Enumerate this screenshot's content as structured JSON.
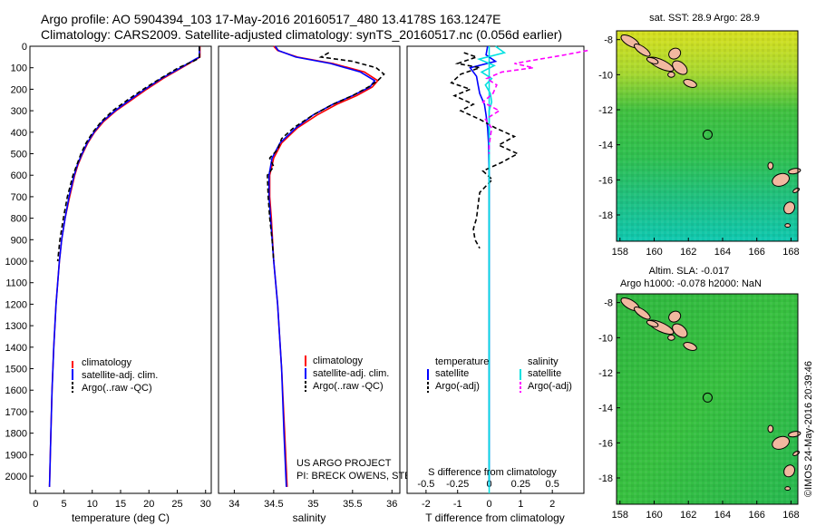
{
  "header": {
    "line1": "Argo profile: AO 5904394_103 17-May-2016 20160517_480 13.4178S 163.1247E",
    "line2": "Climatology: CARS2009. Satellite-adjusted climatology: synTS_20160517.nc (0.056d earlier)"
  },
  "credits": {
    "project": "US ARGO PROJECT",
    "pis": "PI: BRECK OWENS, STEVE JAYNE, P.E. ROBBINS",
    "timestamp": "©IMOS 24-May-2016 20:39:46"
  },
  "colors": {
    "climatology": "#ff0000",
    "satellite": "#0000ff",
    "argo": "#000000",
    "sal_satellite": "#00e0e0",
    "sal_argo": "#ff00ff",
    "land": "#f2b8a0"
  },
  "chart_data": [
    {
      "type": "line",
      "id": "temperature",
      "xlabel": "temperature (deg C)",
      "xlim": [
        -1,
        31
      ],
      "ylim": [
        2080,
        0
      ],
      "xticks": [
        0,
        5,
        10,
        15,
        20,
        25,
        30
      ],
      "yticks": [
        0,
        100,
        200,
        300,
        400,
        500,
        600,
        700,
        800,
        900,
        1000,
        1100,
        1200,
        1300,
        1400,
        1500,
        1600,
        1700,
        1800,
        1900,
        2000
      ],
      "legend": [
        "climatology",
        "satellite-adj. clim.",
        "Argo(..raw -QC)"
      ],
      "legend_position": "lower-center",
      "series": [
        {
          "name": "climatology",
          "depth": [
            0,
            50,
            60,
            100,
            150,
            200,
            250,
            300,
            350,
            400,
            450,
            500,
            550,
            600,
            700,
            800,
            900,
            1000,
            1200,
            1400,
            1600,
            1800,
            2000,
            2050
          ],
          "values": [
            29.0,
            29.0,
            28.4,
            25.8,
            22.5,
            19.6,
            16.9,
            14.2,
            12.0,
            10.4,
            9.2,
            8.3,
            7.5,
            6.9,
            6.0,
            5.2,
            4.6,
            4.2,
            3.6,
            3.2,
            2.9,
            2.7,
            2.5,
            2.45
          ]
        },
        {
          "name": "satellite-adj. clim.",
          "depth": [
            0,
            50,
            60,
            100,
            150,
            200,
            250,
            300,
            350,
            400,
            450,
            500,
            550,
            600,
            700,
            800,
            900,
            1000,
            1200,
            1400,
            1600,
            1800,
            2000,
            2050
          ],
          "values": [
            28.9,
            28.9,
            28.2,
            25.6,
            22.2,
            19.3,
            16.6,
            14.0,
            11.8,
            10.3,
            9.1,
            8.2,
            7.4,
            6.8,
            5.9,
            5.2,
            4.6,
            4.2,
            3.6,
            3.2,
            2.9,
            2.7,
            2.5,
            2.45
          ]
        },
        {
          "name": "Argo(..raw -QC)",
          "depth": [
            0,
            55,
            70,
            100,
            150,
            200,
            250,
            300,
            350,
            400,
            450,
            500,
            550,
            600,
            700,
            800,
            900,
            1000
          ],
          "values": [
            28.9,
            28.9,
            27.8,
            25.2,
            22.0,
            19.0,
            16.2,
            13.6,
            11.6,
            10.1,
            8.9,
            8.0,
            7.3,
            6.6,
            5.6,
            4.9,
            4.3,
            3.9
          ]
        }
      ]
    },
    {
      "type": "line",
      "id": "salinity",
      "xlabel": "salinity",
      "xlim": [
        33.8,
        36.1
      ],
      "ylim": [
        2080,
        0
      ],
      "xticks": [
        34,
        34.5,
        35,
        35.5,
        36
      ],
      "legend": [
        "climatology",
        "satellite-adj. clim.",
        "Argo(..raw -QC)"
      ],
      "legend_position": "lower-center",
      "series": [
        {
          "name": "climatology",
          "depth": [
            0,
            20,
            50,
            80,
            120,
            160,
            190,
            230,
            270,
            320,
            380,
            450,
            520,
            600,
            700,
            800,
            1000,
            1200,
            1500,
            1800,
            2050
          ],
          "values": [
            34.5,
            34.55,
            34.8,
            35.25,
            35.65,
            35.82,
            35.75,
            35.55,
            35.3,
            35.05,
            34.8,
            34.6,
            34.5,
            34.45,
            34.45,
            34.47,
            34.5,
            34.55,
            34.6,
            34.64,
            34.67
          ]
        },
        {
          "name": "satellite-adj. clim.",
          "depth": [
            0,
            20,
            50,
            80,
            120,
            160,
            190,
            230,
            270,
            320,
            380,
            450,
            520,
            600,
            700,
            800,
            1000,
            1200,
            1500,
            1800,
            2050
          ],
          "values": [
            34.52,
            34.56,
            34.78,
            35.22,
            35.6,
            35.78,
            35.72,
            35.5,
            35.25,
            35.0,
            34.78,
            34.58,
            34.48,
            34.44,
            34.44,
            34.46,
            34.5,
            34.55,
            34.6,
            34.63,
            34.66
          ]
        },
        {
          "name": "Argo(..raw -QC)",
          "depth": [
            30,
            50,
            70,
            100,
            130,
            160,
            190,
            230,
            270,
            320,
            380,
            430,
            480,
            520,
            560,
            600,
            700,
            800,
            900,
            1000
          ],
          "values": [
            35.2,
            35.1,
            35.5,
            35.8,
            35.9,
            35.82,
            35.7,
            35.5,
            35.25,
            35.0,
            34.75,
            34.6,
            34.55,
            34.45,
            34.5,
            34.42,
            34.43,
            34.45,
            34.48,
            34.5
          ]
        }
      ]
    },
    {
      "type": "line",
      "id": "differences",
      "xlabel": "T difference from climatology",
      "xlabel_top": "S difference from climatology",
      "xlim": [
        -2.6,
        3.0
      ],
      "ylim": [
        2080,
        0
      ],
      "xticks": [
        -2,
        -1,
        0,
        1,
        2
      ],
      "xticks_s": [
        -0.5,
        -0.25,
        0,
        0.25,
        0.5
      ],
      "xtick_labels_s": [
        "-0.5",
        "-0.25",
        "0",
        "0.25",
        "0.5"
      ],
      "legend_temperature_title": "temperature",
      "legend_salinity_title": "salinity",
      "legend_labels": [
        "satellite",
        "Argo(-adj)",
        "satellite",
        "Argo(-adj)"
      ],
      "series": [
        {
          "name": "T satellite",
          "depth": [
            0,
            40,
            70,
            100,
            140,
            180,
            220,
            270,
            320,
            380,
            450,
            600,
            800,
            1000,
            2050
          ],
          "values": [
            -0.05,
            -0.1,
            0.2,
            -0.6,
            -0.4,
            -0.35,
            -0.3,
            -0.15,
            -0.1,
            -0.05,
            -0.02,
            0,
            0,
            0,
            0
          ]
        },
        {
          "name": "T Argo(-adj)",
          "depth": [
            30,
            50,
            80,
            100,
            130,
            170,
            200,
            230,
            270,
            300,
            340,
            380,
            420,
            460,
            500,
            540,
            580,
            620,
            680,
            740,
            800,
            850,
            900,
            940
          ],
          "values": [
            -0.8,
            -0.4,
            -1.0,
            -0.3,
            -0.9,
            -1.2,
            -0.6,
            -1.1,
            -0.5,
            -0.9,
            -0.3,
            0.2,
            0.8,
            0.3,
            0.9,
            0.4,
            -0.2,
            0.1,
            -0.3,
            -0.35,
            -0.4,
            -0.5,
            -0.45,
            -0.3
          ]
        },
        {
          "name": "S satellite",
          "depth": [
            0,
            30,
            60,
            90,
            120,
            150,
            180,
            220,
            260,
            300,
            400,
            600,
            1000,
            2050
          ],
          "values": [
            0.05,
            0.12,
            -0.08,
            0.04,
            -0.06,
            0.02,
            -0.03,
            0.01,
            0.02,
            0,
            0,
            0,
            0,
            0
          ]
        },
        {
          "name": "S Argo(-adj)",
          "depth": [
            20,
            40,
            60,
            80,
            100,
            120,
            150,
            180,
            220,
            260,
            300,
            340,
            380,
            420,
            460,
            500
          ],
          "values": [
            0.78,
            0.6,
            0.4,
            0.2,
            0.35,
            0.1,
            -0.02,
            0.06,
            0.03,
            -0.05,
            0.08,
            -0.03,
            0.02,
            0.01,
            0,
            0
          ]
        }
      ]
    }
  ],
  "maps": [
    {
      "id": "sst-map",
      "title": "sat. SST: 28.9 Argo: 28.9",
      "xticks": [
        158,
        160,
        162,
        164,
        166,
        168
      ],
      "yticks": [
        "-8",
        "-10",
        "-12",
        "-14",
        "-16",
        "-18"
      ],
      "xlim": [
        157.8,
        168.4
      ],
      "ylim": [
        -19.5,
        -7.5
      ],
      "float_position": [
        163.1247,
        -13.4178
      ]
    },
    {
      "id": "sla-map",
      "title": "Altim. SLA: -0.017",
      "title2": "Argo h1000: -0.078 h2000: NaN",
      "xticks": [
        158,
        160,
        162,
        164,
        166,
        168
      ],
      "yticks": [
        "-8",
        "-10",
        "-12",
        "-14",
        "-16",
        "-18"
      ],
      "xlim": [
        157.8,
        168.4
      ],
      "ylim": [
        -19.5,
        -7.5
      ],
      "float_position": [
        163.1247,
        -13.4178
      ]
    }
  ]
}
